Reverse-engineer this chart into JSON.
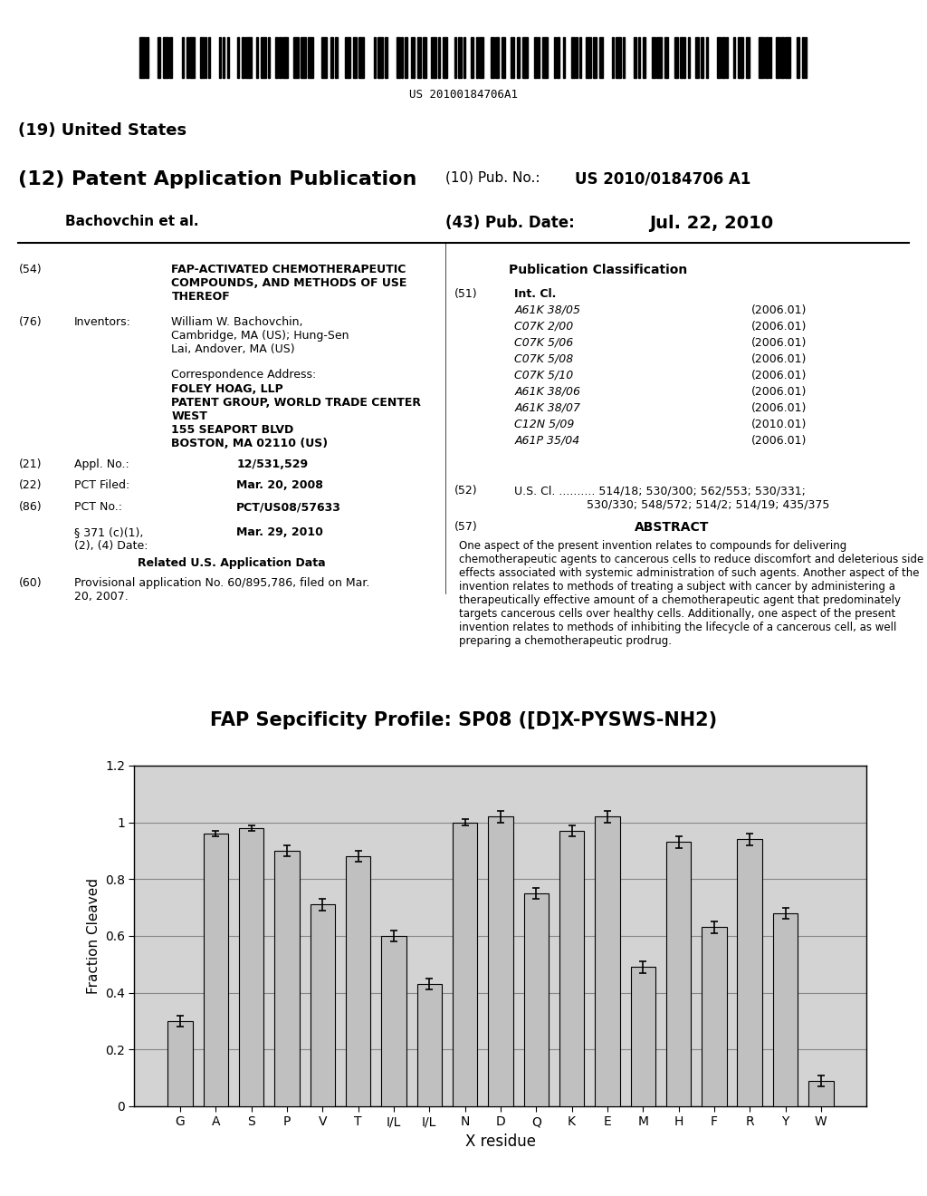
{
  "title": "FAP Sepcificity Profile: SP08 ([D]X-PYSWS-NH2)",
  "xlabel": "X residue",
  "ylabel": "Fraction Cleaved",
  "categories": [
    "G",
    "A",
    "S",
    "P",
    "V",
    "T",
    "I/L",
    "I/L",
    "N",
    "D",
    "Q",
    "K",
    "E",
    "M",
    "H",
    "F",
    "R",
    "Y",
    "W"
  ],
  "values": [
    0.3,
    0.96,
    0.98,
    0.9,
    0.71,
    0.88,
    0.6,
    0.43,
    1.0,
    1.02,
    0.75,
    0.97,
    1.02,
    0.49,
    0.93,
    0.63,
    0.94,
    0.68,
    0.09
  ],
  "errors": [
    0.02,
    0.01,
    0.01,
    0.02,
    0.02,
    0.02,
    0.02,
    0.02,
    0.01,
    0.02,
    0.02,
    0.02,
    0.02,
    0.02,
    0.02,
    0.02,
    0.02,
    0.02,
    0.02
  ],
  "ylim": [
    0,
    1.2
  ],
  "yticks": [
    0,
    0.2,
    0.4,
    0.6,
    0.8,
    1.0,
    1.2
  ],
  "bar_color": "#c0c0c0",
  "bar_edge_color": "#000000",
  "plot_area_color": "#d3d3d3",
  "outer_bg": "#ffffff",
  "grid_color": "#888888",
  "patent_header": {
    "barcode_text": "US 20100184706A1",
    "country": "(19) United States",
    "pub_type": "(12) Patent Application Publication",
    "pub_no_label": "(10) Pub. No.:",
    "pub_no": "US 2010/0184706 A1",
    "inventors_label": "Bachovchin et al.",
    "pub_date_label": "(43) Pub. Date:",
    "pub_date": "Jul. 22, 2010",
    "inventors": "William W. Bachovchin,\nCambridge, MA (US); Hung-Sen\nLai, Andover, MA (US)",
    "correspondence": "FOLEY HOAG, LLP\nPATENT GROUP, WORLD TRADE CENTER\nWEST\n155 SEAPORT BLVD\nBOSTON, MA 02110 (US)",
    "section21_value": "12/531,529",
    "section22_value": "Mar. 20, 2008",
    "section86_value": "PCT/US08/57633",
    "section371_value": "Mar. 29, 2010",
    "related_data": "Related U.S. Application Data",
    "section60_value": "Provisional application No. 60/895,786, filed on Mar.\n20, 2007.",
    "pub_class_title": "Publication Classification",
    "classifications": [
      [
        "A61K 38/05",
        "(2006.01)"
      ],
      [
        "C07K 2/00",
        "(2006.01)"
      ],
      [
        "C07K 5/06",
        "(2006.01)"
      ],
      [
        "C07K 5/08",
        "(2006.01)"
      ],
      [
        "C07K 5/10",
        "(2006.01)"
      ],
      [
        "A61K 38/06",
        "(2006.01)"
      ],
      [
        "A61K 38/07",
        "(2006.01)"
      ],
      [
        "C12N 5/09",
        "(2010.01)"
      ],
      [
        "A61P 35/04",
        "(2006.01)"
      ]
    ],
    "section52_value": "U.S. Cl. .......... 514/18; 530/300; 562/553; 530/331;\n                    530/330; 548/572; 514/2; 514/19; 435/375",
    "abstract_title": "ABSTRACT",
    "abstract_text": "One aspect of the present invention relates to compounds for delivering chemotherapeutic agents to cancerous cells to reduce discomfort and deleterious side effects associated with systemic administration of such agents. Another aspect of the invention relates to methods of treating a subject with cancer by administering a therapeutically effective amount of a chemotherapeutic agent that predominately targets cancerous cells over healthy cells. Additionally, one aspect of the present invention relates to methods of inhibiting the lifecycle of a cancerous cell, as well preparing a chemotherapeutic prodrug."
  }
}
